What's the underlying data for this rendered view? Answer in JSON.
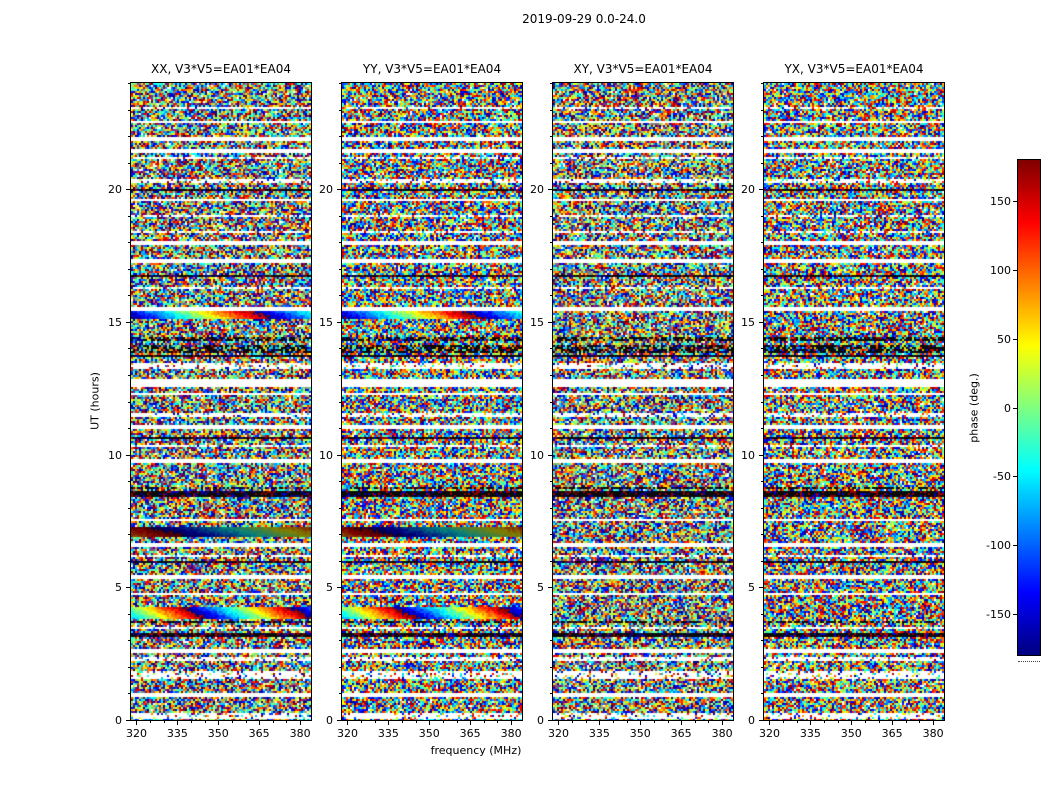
{
  "figure": {
    "suptitle": "2019-09-29 0.0-24.0"
  },
  "chart_data": {
    "type": "heatmap",
    "suptitle": "2019-09-29 0.0-24.0",
    "xlabel": "frequency (MHz)",
    "ylabel": "UT (hours)",
    "panels": [
      {
        "title": "XX, V3*V5=EA01*EA04"
      },
      {
        "title": "YY, V3*V5=EA01*EA04"
      },
      {
        "title": "XY, V3*V5=EA01*EA04"
      },
      {
        "title": "YX, V3*V5=EA01*EA04"
      }
    ],
    "x_range": [
      318,
      384
    ],
    "y_range": [
      0,
      24
    ],
    "x_ticks": [
      320,
      335,
      350,
      365,
      380
    ],
    "x_minor_step": 5,
    "y_ticks": [
      0,
      5,
      10,
      15,
      20
    ],
    "y_minor_step": 1,
    "colorbar": {
      "label": "phase (deg.)",
      "ticks": [
        150,
        100,
        50,
        0,
        -50,
        -100,
        -150
      ],
      "vmin": -180,
      "vmax": 180,
      "colormap": "jet"
    },
    "content": "random interferometric visibility phase noise (-180..180 deg) vs frequency and UT; horizontal flagged (white) and low-amplitude (dark) time ranges; coherent smooth-phase fringes in XX and YY",
    "seed": 20190929,
    "features": [
      {
        "ut": 23.05,
        "dur": 0.12,
        "type": "white_speckle"
      },
      {
        "ut": 22.55,
        "dur": 0.1,
        "type": "white"
      },
      {
        "ut": 21.9,
        "dur": 0.1,
        "type": "white"
      },
      {
        "ut": 21.45,
        "dur": 0.1,
        "type": "white"
      },
      {
        "ut": 21.15,
        "dur": 0.1,
        "type": "white_speckle"
      },
      {
        "ut": 20.3,
        "dur": 0.1,
        "type": "white_speckle"
      },
      {
        "ut": 20.0,
        "dur": 0.08,
        "type": "black"
      },
      {
        "ut": 19.6,
        "dur": 0.1,
        "type": "white"
      },
      {
        "ut": 19.0,
        "dur": 0.1,
        "type": "white_speckle"
      },
      {
        "ut": 18.4,
        "dur": 0.12,
        "type": "white_speckle"
      },
      {
        "ut": 17.95,
        "dur": 0.12,
        "type": "white"
      },
      {
        "ut": 17.3,
        "dur": 0.1,
        "type": "white"
      },
      {
        "ut": 16.75,
        "dur": 0.08,
        "type": "black"
      },
      {
        "ut": 16.3,
        "dur": 0.1,
        "type": "white_speckle"
      },
      {
        "ut": 15.5,
        "dur": 0.18,
        "type": "white"
      },
      {
        "ut": 15.25,
        "dur": 0.3,
        "type": "smooth",
        "panels": "xxyy",
        "cycles": 1.3,
        "phase0": 200
      },
      {
        "ut": 14.35,
        "dur": 0.12,
        "type": "darkspeckle"
      },
      {
        "ut": 13.95,
        "dur": 0.3,
        "type": "darkspeckle"
      },
      {
        "ut": 13.7,
        "dur": 0.12,
        "type": "black"
      },
      {
        "ut": 13.35,
        "dur": 0.22,
        "type": "white_speckle"
      },
      {
        "ut": 12.7,
        "dur": 0.28,
        "type": "white"
      },
      {
        "ut": 12.3,
        "dur": 0.1,
        "type": "white"
      },
      {
        "ut": 11.5,
        "dur": 0.1,
        "type": "white_speckle"
      },
      {
        "ut": 11.05,
        "dur": 0.1,
        "type": "white"
      },
      {
        "ut": 10.6,
        "dur": 0.08,
        "type": "black"
      },
      {
        "ut": 10.3,
        "dur": 0.1,
        "type": "white_speckle"
      },
      {
        "ut": 9.75,
        "dur": 0.1,
        "type": "white"
      },
      {
        "ut": 8.75,
        "dur": 0.1,
        "type": "darkspeckle"
      },
      {
        "ut": 8.5,
        "dur": 0.22,
        "type": "black"
      },
      {
        "ut": 7.55,
        "dur": 0.1,
        "type": "white"
      },
      {
        "ut": 7.1,
        "dur": 0.4,
        "type": "smooth",
        "panels": "xxyy",
        "cycles": 0.9,
        "phase0": 120,
        "dark": true
      },
      {
        "ut": 6.6,
        "dur": 0.1,
        "type": "white"
      },
      {
        "ut": 6.2,
        "dur": 0.1,
        "type": "white_speckle"
      },
      {
        "ut": 5.95,
        "dur": 0.08,
        "type": "black"
      },
      {
        "ut": 5.4,
        "dur": 0.1,
        "type": "white"
      },
      {
        "ut": 4.75,
        "dur": 0.1,
        "type": "white"
      },
      {
        "ut": 4.05,
        "dur": 0.45,
        "type": "smooth",
        "panels": "xxyy",
        "cycles": 1.7,
        "phase0": -30
      },
      {
        "ut": 3.7,
        "dur": 0.1,
        "type": "darkspeckle"
      },
      {
        "ut": 3.45,
        "dur": 0.1,
        "type": "white_speckle"
      },
      {
        "ut": 3.2,
        "dur": 0.12,
        "type": "black"
      },
      {
        "ut": 2.6,
        "dur": 0.1,
        "type": "white"
      },
      {
        "ut": 2.3,
        "dur": 0.12,
        "type": "white_speckle"
      },
      {
        "ut": 1.7,
        "dur": 0.3,
        "type": "white_speckle"
      },
      {
        "ut": 0.95,
        "dur": 0.1,
        "type": "white"
      },
      {
        "ut": 0.15,
        "dur": 0.25,
        "type": "white_speckle"
      }
    ]
  }
}
